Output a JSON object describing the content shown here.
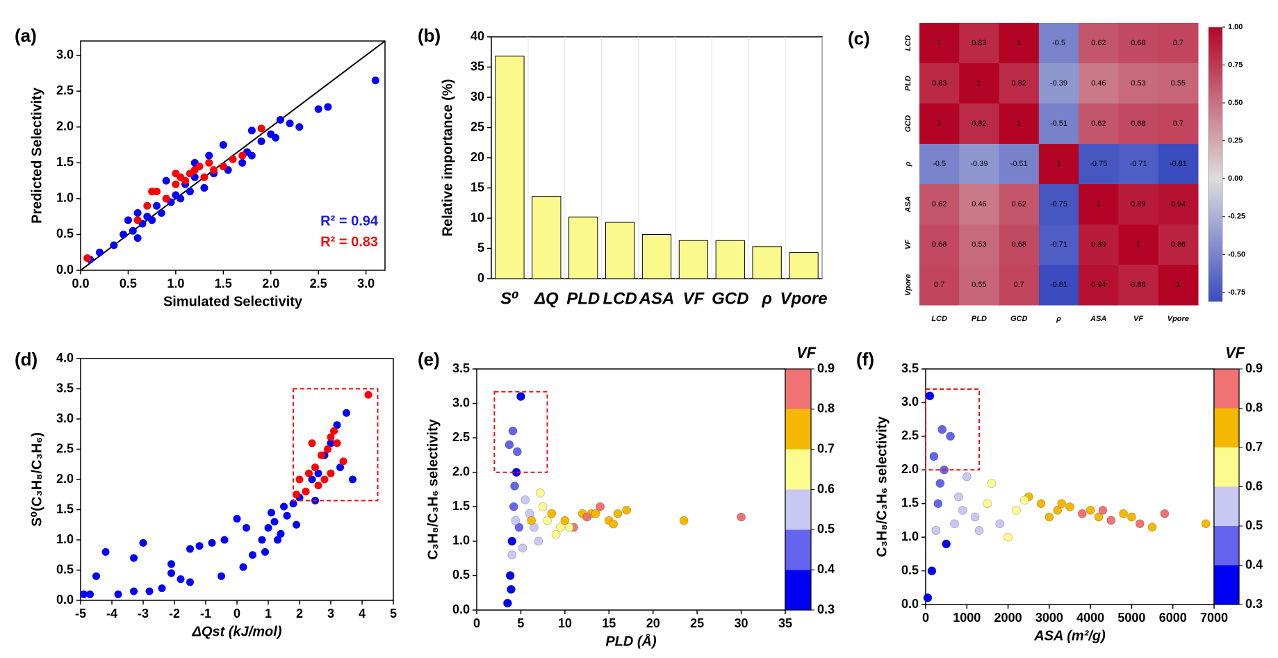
{
  "chart_data": [
    {
      "type": "scatter",
      "label": "(a)",
      "x_label": "Simulated Selectivity",
      "y_label": "Predicted Selectivity",
      "xlim": [
        0,
        3.2
      ],
      "ylim": [
        0,
        3.2
      ],
      "xticks": [
        {
          "value": 0,
          "label": "0.0"
        },
        {
          "value": 0.5,
          "label": "0.5"
        },
        {
          "value": 1,
          "label": "1.0"
        },
        {
          "value": 1.5,
          "label": "1.5"
        },
        {
          "value": 2,
          "label": "2.0"
        },
        {
          "value": 2.5,
          "label": "2.5"
        },
        {
          "value": 3,
          "label": "3.0"
        }
      ],
      "yticks": [
        {
          "value": 0,
          "label": "0.0"
        },
        {
          "value": 0.5,
          "label": "0.5"
        },
        {
          "value": 1,
          "label": "1.0"
        },
        {
          "value": 1.5,
          "label": "1.5"
        },
        {
          "value": 2,
          "label": "2.0"
        },
        {
          "value": 2.5,
          "label": "2.5"
        },
        {
          "value": 3,
          "label": "3.0"
        }
      ],
      "diagonal": true,
      "series": [
        {
          "color": "#0000ff",
          "x": [
            0.1,
            0.2,
            0.35,
            0.45,
            0.5,
            0.55,
            0.6,
            0.65,
            0.7,
            0.75,
            0.8,
            0.85,
            0.9,
            0.95,
            1.0,
            1.05,
            1.1,
            1.15,
            1.2,
            1.3,
            1.35,
            1.4,
            1.5,
            1.55,
            1.6,
            1.7,
            1.75,
            1.8,
            1.9,
            2.0,
            2.05,
            2.1,
            2.2,
            2.3,
            2.5,
            2.6,
            3.1,
            0.6,
            0.9,
            1.2,
            1.5,
            1.8
          ],
          "values": [
            0.15,
            0.25,
            0.35,
            0.5,
            0.7,
            0.55,
            0.8,
            0.65,
            0.75,
            0.7,
            0.9,
            0.8,
            1.0,
            0.95,
            1.05,
            1.0,
            1.2,
            1.1,
            1.3,
            1.15,
            1.6,
            1.35,
            1.45,
            1.4,
            1.55,
            1.5,
            1.65,
            1.6,
            1.8,
            1.9,
            1.85,
            2.1,
            2.05,
            2.0,
            2.25,
            2.28,
            2.65,
            0.45,
            1.25,
            1.5,
            1.75,
            1.95
          ]
        },
        {
          "color": "#ff0000",
          "x": [
            0.07,
            0.6,
            0.7,
            0.8,
            0.9,
            1.0,
            1.05,
            1.1,
            1.15,
            1.2,
            1.25,
            1.3,
            1.35,
            1.4,
            1.5,
            1.6,
            1.7,
            1.9,
            0.75,
            1.0
          ],
          "values": [
            0.17,
            0.7,
            0.9,
            1.1,
            1.0,
            1.2,
            1.3,
            1.25,
            1.35,
            1.4,
            1.45,
            1.3,
            1.5,
            1.4,
            1.45,
            1.55,
            1.6,
            1.98,
            1.1,
            1.35
          ]
        }
      ],
      "annotations": [
        {
          "text": "R² = 0.94",
          "color": "#1a1ae6"
        },
        {
          "text": "R² = 0.83",
          "color": "#ee1111"
        }
      ]
    },
    {
      "type": "bar",
      "label": "(b)",
      "y_label": "Relative importance (%)",
      "categories": [
        "S⁰",
        "ΔQ",
        "PLD",
        "LCD",
        "ASA",
        "VF",
        "GCD",
        "ρ",
        "Vpore"
      ],
      "values": [
        36.8,
        13.6,
        10.2,
        9.3,
        7.3,
        6.3,
        6.3,
        5.3,
        4.3
      ],
      "color": "#fafa8c",
      "ylim": [
        0,
        40
      ],
      "yticks": [
        0,
        5,
        10,
        15,
        20,
        25,
        30,
        35,
        40
      ]
    },
    {
      "type": "heatmap",
      "label": "(c)",
      "categories": [
        "LCD",
        "PLD",
        "GCD",
        "ρ",
        "ASA",
        "VF",
        "Vpore"
      ],
      "z": [
        [
          1,
          0.83,
          1,
          -0.5,
          0.62,
          0.68,
          0.7
        ],
        [
          0.83,
          1,
          0.82,
          -0.39,
          0.46,
          0.53,
          0.55
        ],
        [
          1,
          0.82,
          1,
          -0.51,
          0.62,
          0.68,
          0.7
        ],
        [
          -0.5,
          -0.39,
          -0.51,
          1,
          -0.75,
          -0.71,
          -0.81
        ],
        [
          0.62,
          0.46,
          0.62,
          -0.75,
          1,
          0.89,
          0.94
        ],
        [
          0.68,
          0.53,
          0.68,
          -0.71,
          0.89,
          1,
          0.86
        ],
        [
          0.7,
          0.55,
          0.7,
          -0.81,
          0.94,
          0.86,
          1
        ]
      ],
      "zlim": [
        -0.81,
        1
      ],
      "colormap": [
        "#3b4cc0",
        "#dddddd",
        "#b40426"
      ],
      "colorbar_ticks": [
        {
          "value": 1,
          "label": "1.00"
        },
        {
          "value": 0.75,
          "label": "0.75"
        },
        {
          "value": 0.5,
          "label": "0.50"
        },
        {
          "value": 0.25,
          "label": "0.25"
        },
        {
          "value": 0,
          "label": "0.00"
        },
        {
          "value": -0.25,
          "label": "-0.25"
        },
        {
          "value": -0.5,
          "label": "-0.50"
        },
        {
          "value": -0.75,
          "label": "-0.75"
        }
      ]
    },
    {
      "type": "scatter",
      "label": "(d)",
      "x_label": "ΔQst (kJ/mol)",
      "y_label": "S⁰(C₃H₈/C₃H₆)",
      "xlim": [
        -5,
        5
      ],
      "ylim": [
        0,
        4
      ],
      "xticks": [
        -5,
        -4,
        -3,
        -2,
        -1,
        0,
        1,
        2,
        3,
        4,
        5
      ],
      "yticks": [
        {
          "value": 0,
          "label": "0.0"
        },
        {
          "value": 0.5,
          "label": "0.5"
        },
        {
          "value": 1,
          "label": "1.0"
        },
        {
          "value": 1.5,
          "label": "1.5"
        },
        {
          "value": 2,
          "label": "2.0"
        },
        {
          "value": 2.5,
          "label": "2.5"
        },
        {
          "value": 3,
          "label": "3.0"
        },
        {
          "value": 3.5,
          "label": "3.5"
        },
        {
          "value": 4,
          "label": "4.0"
        }
      ],
      "highlight_box": {
        "x": [
          1.8,
          4.5
        ],
        "y": [
          1.65,
          3.5
        ]
      },
      "series": [
        {
          "color": "#0000ff",
          "x": [
            -4.9,
            -4.7,
            -4.5,
            -4.2,
            -3.8,
            -3.3,
            -3.0,
            -2.8,
            -2.4,
            -2.1,
            -1.8,
            -1.5,
            -1.2,
            -0.8,
            -0.4,
            0,
            0.2,
            0.5,
            0.8,
            1.0,
            1.2,
            1.4,
            1.6,
            1.8,
            2.0,
            2.2,
            2.4,
            2.6,
            2.8,
            3.0,
            3.2,
            3.5,
            3.7,
            -3.3,
            -2.1,
            -1.5,
            -0.5,
            0.3,
            0.9,
            1.1,
            1.3,
            1.5,
            2.5,
            3.3,
            1.9
          ],
          "values": [
            0.1,
            0.1,
            0.4,
            0.8,
            0.1,
            0.15,
            0.95,
            0.15,
            0.2,
            0.45,
            0.35,
            0.85,
            0.9,
            0.95,
            1.0,
            1.35,
            0.55,
            0.75,
            1.0,
            1.2,
            1.3,
            1.1,
            1.4,
            1.6,
            1.7,
            1.8,
            2.0,
            2.1,
            2.4,
            2.6,
            2.9,
            3.1,
            2.0,
            0.7,
            0.6,
            0.3,
            0.4,
            1.2,
            0.8,
            1.45,
            1.0,
            1.55,
            1.65,
            2.2,
            1.25
          ]
        },
        {
          "color": "#ff0000",
          "x": [
            2.0,
            2.3,
            2.5,
            2.7,
            2.9,
            3.0,
            3.1,
            3.2,
            3.4,
            2.2,
            2.6,
            2.8,
            3.0,
            4.2,
            1.9,
            2.4
          ],
          "values": [
            2.0,
            2.1,
            2.2,
            2.4,
            2.5,
            2.7,
            2.8,
            2.6,
            2.3,
            1.8,
            1.9,
            2.0,
            2.1,
            3.4,
            1.75,
            2.6
          ]
        }
      ]
    },
    {
      "type": "scatter",
      "label": "(e)",
      "x_label": "PLD (Å)",
      "y_label": "C₃H₈/C₃H₆ selectivity",
      "xlim": [
        0,
        35
      ],
      "ylim": [
        0,
        3.5
      ],
      "xticks": [
        0,
        5,
        10,
        15,
        20,
        25,
        30,
        35
      ],
      "yticks": [
        {
          "value": 0,
          "label": "0.0"
        },
        {
          "value": 0.5,
          "label": "0.5"
        },
        {
          "value": 1,
          "label": "1.0"
        },
        {
          "value": 1.5,
          "label": "1.5"
        },
        {
          "value": 2,
          "label": "2.0"
        },
        {
          "value": 2.5,
          "label": "2.5"
        },
        {
          "value": 3,
          "label": "3.0"
        },
        {
          "value": 3.5,
          "label": "3.5"
        }
      ],
      "highlight_box": {
        "x": [
          2,
          8
        ],
        "y": [
          2.0,
          3.17
        ]
      },
      "colorbar": {
        "title": "VF",
        "ticks": [
          0.3,
          0.4,
          0.5,
          0.6,
          0.7,
          0.8,
          0.9
        ],
        "colors": [
          "#0000f5",
          "#6464ee",
          "#c8c8f2",
          "#fbfb8e",
          "#f5b800",
          "#f07272"
        ]
      },
      "series": [
        {
          "x": [
            3.5,
            3.8,
            4.0,
            4.2,
            4.5,
            3.7,
            4.1,
            4.8,
            5.0,
            3.9,
            4.3,
            4.6,
            4.0,
            4.4,
            5.5,
            6,
            6.5,
            7,
            7.5,
            8,
            9,
            5.2,
            6.2,
            7.2,
            8.5,
            9.5,
            10,
            11,
            12,
            13,
            14,
            15,
            16,
            17,
            10.5,
            12.5,
            13.5,
            15.5,
            23.5,
            30
          ],
          "values": [
            0.1,
            0.5,
            1.0,
            1.5,
            2.0,
            2.4,
            2.6,
            1.2,
            3.1,
            0.3,
            1.8,
            2.3,
            0.8,
            1.3,
            1.6,
            1.4,
            1.2,
            1.0,
            1.5,
            1.3,
            1.1,
            0.9,
            1.3,
            1.7,
            1.4,
            1.2,
            1.3,
            1.2,
            1.4,
            1.4,
            1.5,
            1.3,
            1.4,
            1.45,
            1.2,
            1.35,
            1.4,
            1.25,
            1.3,
            1.35
          ],
          "color_values": [
            0.35,
            0.35,
            0.38,
            0.42,
            0.38,
            0.45,
            0.42,
            0.45,
            0.35,
            0.32,
            0.48,
            0.42,
            0.52,
            0.55,
            0.55,
            0.58,
            0.55,
            0.58,
            0.62,
            0.65,
            0.62,
            0.52,
            0.72,
            0.65,
            0.75,
            0.68,
            0.72,
            0.82,
            0.75,
            0.72,
            0.82,
            0.75,
            0.72,
            0.78,
            0.65,
            0.82,
            0.75,
            0.72,
            0.75,
            0.85
          ]
        }
      ]
    },
    {
      "type": "scatter",
      "label": "(f)",
      "x_label": "ASA (m²/g)",
      "y_label": "C₃H₈/C₃H₆ selectivity",
      "xlim": [
        0,
        7000
      ],
      "ylim": [
        0,
        3.5
      ],
      "xticks": [
        0,
        1000,
        2000,
        3000,
        4000,
        5000,
        6000,
        7000
      ],
      "yticks": [
        {
          "value": 0,
          "label": "0.0"
        },
        {
          "value": 0.5,
          "label": "0.5"
        },
        {
          "value": 1,
          "label": "1.0"
        },
        {
          "value": 1.5,
          "label": "1.5"
        },
        {
          "value": 2,
          "label": "2.0"
        },
        {
          "value": 2.5,
          "label": "2.5"
        },
        {
          "value": 3,
          "label": "3.0"
        },
        {
          "value": 3.5,
          "label": "3.5"
        }
      ],
      "highlight_box": {
        "x": [
          0,
          1300
        ],
        "y": [
          2.0,
          3.2
        ]
      },
      "colorbar": {
        "title": "VF",
        "ticks": [
          0.3,
          0.4,
          0.5,
          0.6,
          0.7,
          0.8,
          0.9
        ],
        "colors": [
          "#0000f5",
          "#6464ee",
          "#c8c8f2",
          "#fbfb8e",
          "#f5b800",
          "#f07272"
        ]
      },
      "series": [
        {
          "x": [
            50,
            100,
            200,
            300,
            400,
            500,
            600,
            150,
            350,
            700,
            250,
            450,
            800,
            1000,
            1200,
            1500,
            1800,
            2000,
            2200,
            2500,
            2800,
            3000,
            3200,
            3500,
            3800,
            4000,
            4200,
            4500,
            4800,
            5000,
            5200,
            5500,
            5800,
            6800,
            900,
            1300,
            1600,
            2400,
            3300,
            4300
          ],
          "values": [
            0.1,
            3.1,
            2.2,
            1.5,
            2.6,
            0.9,
            2.5,
            0.5,
            1.8,
            1.2,
            1.1,
            2.0,
            1.6,
            1.9,
            1.3,
            1.5,
            1.2,
            1.0,
            1.4,
            1.6,
            1.5,
            1.3,
            1.4,
            1.45,
            1.35,
            1.4,
            1.3,
            1.25,
            1.35,
            1.3,
            1.2,
            1.15,
            1.35,
            1.2,
            1.4,
            1.1,
            1.8,
            1.55,
            1.5,
            1.4
          ],
          "color_values": [
            0.35,
            0.35,
            0.4,
            0.42,
            0.45,
            0.38,
            0.48,
            0.32,
            0.45,
            0.52,
            0.55,
            0.48,
            0.55,
            0.58,
            0.55,
            0.62,
            0.58,
            0.62,
            0.65,
            0.72,
            0.75,
            0.72,
            0.75,
            0.72,
            0.82,
            0.75,
            0.72,
            0.82,
            0.75,
            0.72,
            0.82,
            0.75,
            0.82,
            0.75,
            0.55,
            0.58,
            0.62,
            0.65,
            0.72,
            0.82
          ]
        }
      ]
    }
  ]
}
